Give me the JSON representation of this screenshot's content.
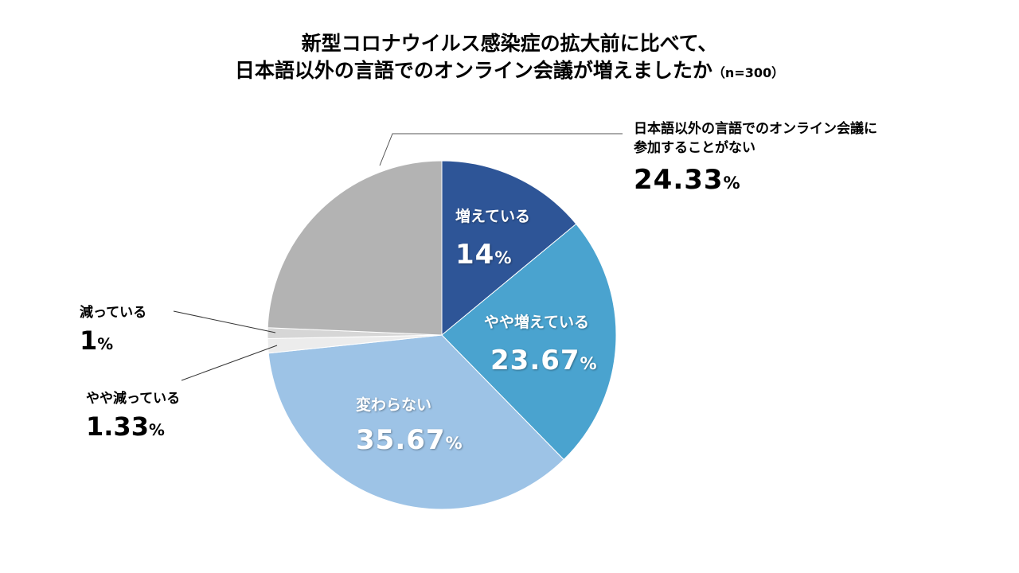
{
  "title": {
    "line1": "新型コロナウイルス感染症の拡大前に比べて、",
    "line2": "日本語以外の言語でのオンライン会議が増えましたか",
    "sample": "（n=300）"
  },
  "chart_data": {
    "type": "pie",
    "title": "新型コロナウイルス感染症の拡大前に比べて、日本語以外の言語でのオンライン会議が増えましたか（n=300）",
    "unit": "%",
    "slices": [
      {
        "label": "増えている",
        "value": 14,
        "display": "14",
        "color": "#2e5597"
      },
      {
        "label": "やや増えている",
        "value": 23.67,
        "display": "23.67",
        "color": "#4aa3cf"
      },
      {
        "label": "変わらない",
        "value": 35.67,
        "display": "35.67",
        "color": "#9dc3e6"
      },
      {
        "label": "やや減っている",
        "value": 1.33,
        "display": "1.33",
        "color": "#ececec"
      },
      {
        "label": "減っている",
        "value": 1,
        "display": "1",
        "color": "#d6d6d6"
      },
      {
        "label": "日本語以外の言語でのオンライン会議に参加することがない",
        "value": 24.33,
        "display": "24.33",
        "color": "#b3b3b3"
      }
    ]
  },
  "labels": {
    "s0": {
      "name": "増えている",
      "value": "14",
      "unit": "%"
    },
    "s1": {
      "name": "やや増えている",
      "value": "23.67",
      "unit": "%"
    },
    "s2": {
      "name": "変わらない",
      "value": "35.67",
      "unit": "%"
    },
    "s3": {
      "name": "やや減っている",
      "value": "1.33",
      "unit": "%"
    },
    "s4": {
      "name": "減っている",
      "value": "1",
      "unit": "%"
    },
    "s5": {
      "name_line1": "日本語以外の言語でのオンライン会議に",
      "name_line2": "参加することがない",
      "value": "24.33",
      "unit": "%"
    }
  }
}
